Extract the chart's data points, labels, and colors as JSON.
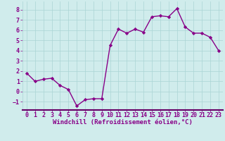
{
  "x": [
    0,
    1,
    2,
    3,
    4,
    5,
    6,
    7,
    8,
    9,
    10,
    11,
    12,
    13,
    14,
    15,
    16,
    17,
    18,
    19,
    20,
    21,
    22,
    23
  ],
  "y": [
    1.8,
    1.0,
    1.2,
    1.3,
    0.6,
    0.2,
    -1.4,
    -0.8,
    -0.7,
    -0.7,
    4.5,
    6.1,
    5.7,
    6.1,
    5.8,
    7.3,
    7.4,
    7.3,
    8.1,
    6.3,
    5.7,
    5.7,
    5.3,
    4.0
  ],
  "line_color": "#880088",
  "marker": "D",
  "marker_size": 2.2,
  "bg_color": "#d0ecec",
  "grid_color": "#aad4d4",
  "xlabel": "Windchill (Refroidissement éolien,°C)",
  "ylim": [
    -1.8,
    8.8
  ],
  "xlim": [
    -0.5,
    23.5
  ],
  "yticks": [
    -1,
    0,
    1,
    2,
    3,
    4,
    5,
    6,
    7,
    8
  ],
  "xticks": [
    0,
    1,
    2,
    3,
    4,
    5,
    6,
    7,
    8,
    9,
    10,
    11,
    12,
    13,
    14,
    15,
    16,
    17,
    18,
    19,
    20,
    21,
    22,
    23
  ],
  "label_fontsize": 6.5,
  "tick_fontsize": 6.0,
  "line_width": 1.0,
  "spine_color": "#880088",
  "label_color": "#880088",
  "spine_bottom_color": "#660066"
}
